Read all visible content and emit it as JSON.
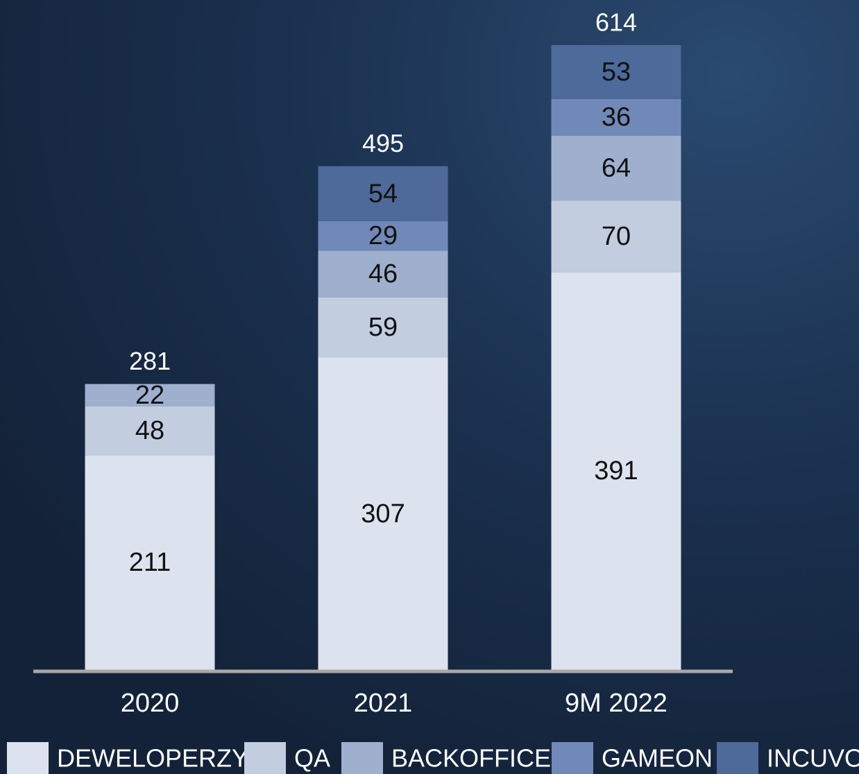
{
  "chart_data": {
    "type": "stacked_bar",
    "categories": [
      "2020",
      "2021",
      "9M 2022"
    ],
    "series": [
      {
        "name": "DEWELOPERZY",
        "color": "#dde3ee",
        "values": [
          211,
          307,
          391
        ]
      },
      {
        "name": "QA",
        "color": "#c3cde0",
        "values": [
          48,
          59,
          70
        ]
      },
      {
        "name": "BACKOFFICE",
        "color": "#9fb0cf",
        "values": [
          22,
          46,
          64
        ]
      },
      {
        "name": "GAMEON",
        "color": "#7189b9",
        "values": [
          null,
          29,
          36
        ]
      },
      {
        "name": "INCUVO",
        "color": "#4e6a9a",
        "values": [
          null,
          54,
          53
        ]
      }
    ],
    "totals": [
      281,
      495,
      614
    ]
  }
}
